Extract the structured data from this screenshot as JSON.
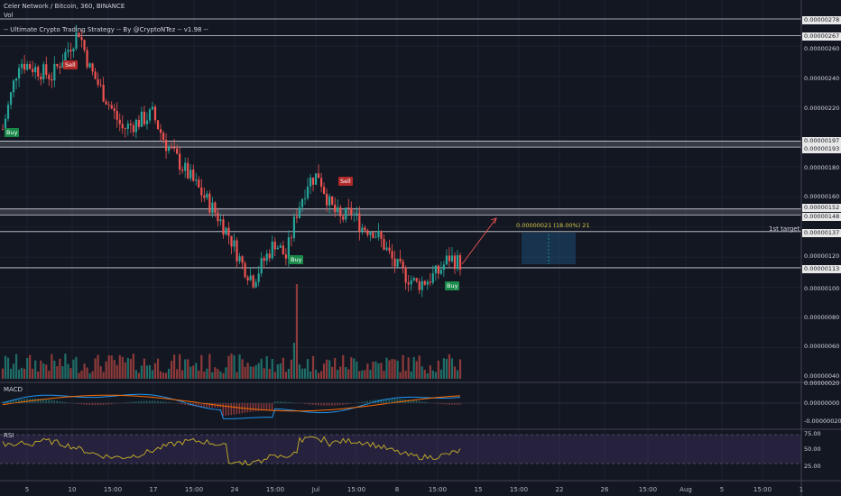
{
  "header": {
    "symbol_line": "Celer Network / Bitcoin, 360, BINANCE",
    "vol_label": "Vol",
    "strategy_label": "-- Ultimate Crypto Trading Strategy -- By @CryptoNTez -- v1.98 --"
  },
  "panes": {
    "macd_label": "MACD",
    "rsi_label": "RSI"
  },
  "price_axis": [
    {
      "label": "0.00000278",
      "boxed": true
    },
    {
      "label": "0.00000267",
      "boxed": true
    },
    {
      "label": "0.00000260",
      "boxed": false
    },
    {
      "label": "0.00000240",
      "boxed": false
    },
    {
      "label": "0.00000220",
      "boxed": false
    },
    {
      "label": "0.00000197",
      "boxed": true
    },
    {
      "label": "0.00000193",
      "boxed": true
    },
    {
      "label": "0.00000180",
      "boxed": false
    },
    {
      "label": "0.00000160",
      "boxed": false
    },
    {
      "label": "0.00000152",
      "boxed": true
    },
    {
      "label": "0.00000148",
      "boxed": true
    },
    {
      "label": "0.00000137",
      "boxed": true
    },
    {
      "label": "0.00000120",
      "boxed": false
    },
    {
      "label": "0.00000113",
      "boxed": true
    },
    {
      "label": "0.00000100",
      "boxed": false
    },
    {
      "label": "0.00000080",
      "boxed": false
    },
    {
      "label": "0.00000060",
      "boxed": false
    },
    {
      "label": "0.00000040",
      "boxed": false
    },
    {
      "label": "0.00000020",
      "boxed": false
    },
    {
      "label": "0.00000000",
      "boxed": false
    },
    {
      "label": "-0.00000020",
      "boxed": false
    },
    {
      "label": "75.00",
      "boxed": false
    },
    {
      "label": "50.00",
      "boxed": false
    },
    {
      "label": "25.00",
      "boxed": false
    }
  ],
  "time_axis": [
    "5",
    "10",
    "15:00",
    "17",
    "15:00",
    "24",
    "15:00",
    "Jul",
    "15:00",
    "8",
    "15:00",
    "15",
    "15:00",
    "22",
    "26",
    "15:00",
    "Aug",
    "5",
    "15:00",
    "1"
  ],
  "signals": [
    {
      "label": "Buy",
      "kind": "buy"
    },
    {
      "label": "Sell",
      "kind": "sell"
    },
    {
      "label": "Buy",
      "kind": "buy"
    },
    {
      "label": "Sell",
      "kind": "sell"
    },
    {
      "label": "Buy",
      "kind": "buy"
    }
  ],
  "annotations": {
    "target_label": "1st target",
    "measure_label": "0.00000021 (18.00%) 21"
  },
  "chart_data": {
    "type": "candlestick",
    "title": "Celer Network / Bitcoin, 360, BINANCE",
    "x_start": "Jun 5",
    "x_end": "Jul 12",
    "y_range": [
      4e-07,
      2.8e-06
    ],
    "horizontal_levels": [
      2.78e-06,
      2.67e-06,
      1.97e-06,
      1.93e-06,
      1.52e-06,
      1.48e-06,
      1.37e-06,
      1.13e-06
    ],
    "close_path": [
      [
        0,
        2.05e-06
      ],
      [
        6,
        2.5e-06
      ],
      [
        12,
        2.45e-06
      ],
      [
        18,
        2.4e-06
      ],
      [
        24,
        2.58e-06
      ],
      [
        28,
        2.7e-06
      ],
      [
        32,
        2.45e-06
      ],
      [
        38,
        2.25e-06
      ],
      [
        44,
        2.05e-06
      ],
      [
        50,
        2.1e-06
      ],
      [
        55,
        2.15e-06
      ],
      [
        60,
        1.95e-06
      ],
      [
        66,
        1.8e-06
      ],
      [
        72,
        1.65e-06
      ],
      [
        78,
        1.5e-06
      ],
      [
        83,
        1.35e-06
      ],
      [
        88,
        1.15e-06
      ],
      [
        92,
        1.05e-06
      ],
      [
        96,
        1.18e-06
      ],
      [
        100,
        1.3e-06
      ],
      [
        104,
        1.2e-06
      ],
      [
        108,
        1.5e-06
      ],
      [
        112,
        1.7e-06
      ],
      [
        116,
        1.75e-06
      ],
      [
        120,
        1.55e-06
      ],
      [
        124,
        1.45e-06
      ],
      [
        128,
        1.5e-06
      ],
      [
        132,
        1.4e-06
      ],
      [
        136,
        1.38e-06
      ],
      [
        140,
        1.28e-06
      ],
      [
        144,
        1.15e-06
      ],
      [
        148,
        1.08e-06
      ],
      [
        152,
        1.02e-06
      ],
      [
        156,
        1.05e-06
      ],
      [
        160,
        1.1e-06
      ],
      [
        164,
        1.2e-06
      ],
      [
        168,
        1.16e-06
      ]
    ],
    "rsi_levels": [
      75,
      50,
      25
    ],
    "macd_range": [
      -2e-07,
      2e-07
    ]
  }
}
